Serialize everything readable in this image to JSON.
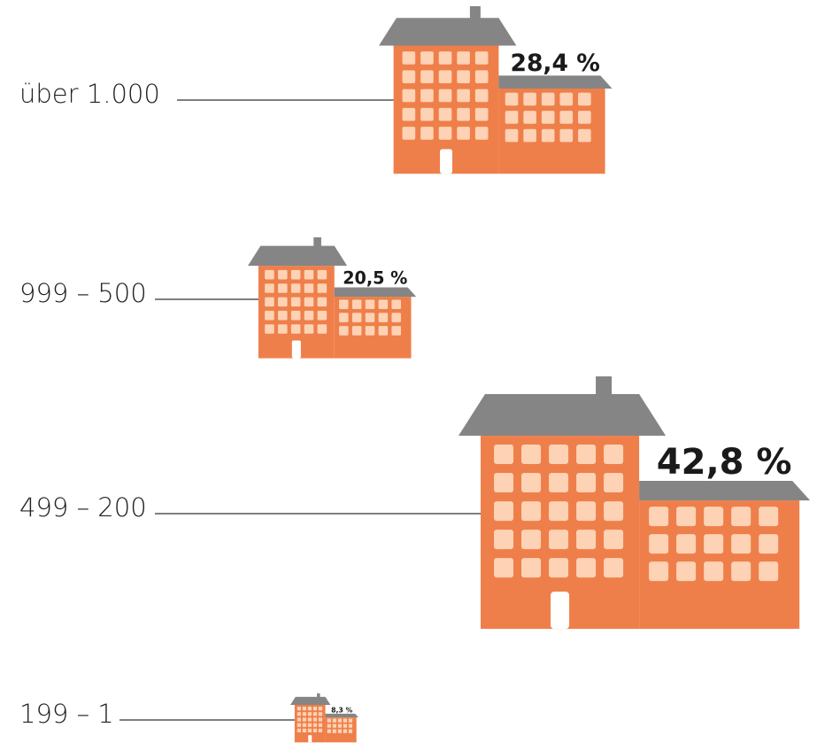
{
  "chart_data": {
    "type": "pictogram",
    "categories": [
      "über 1.000",
      "999 – 500",
      "499 – 200",
      "199 – 1"
    ],
    "values": [
      28.4,
      20.5,
      42.8,
      8.3
    ],
    "value_labels": [
      "28,4 %",
      "20,5 %",
      "42,8 %",
      "8,3 %"
    ],
    "color": "#ef7f4a"
  }
}
